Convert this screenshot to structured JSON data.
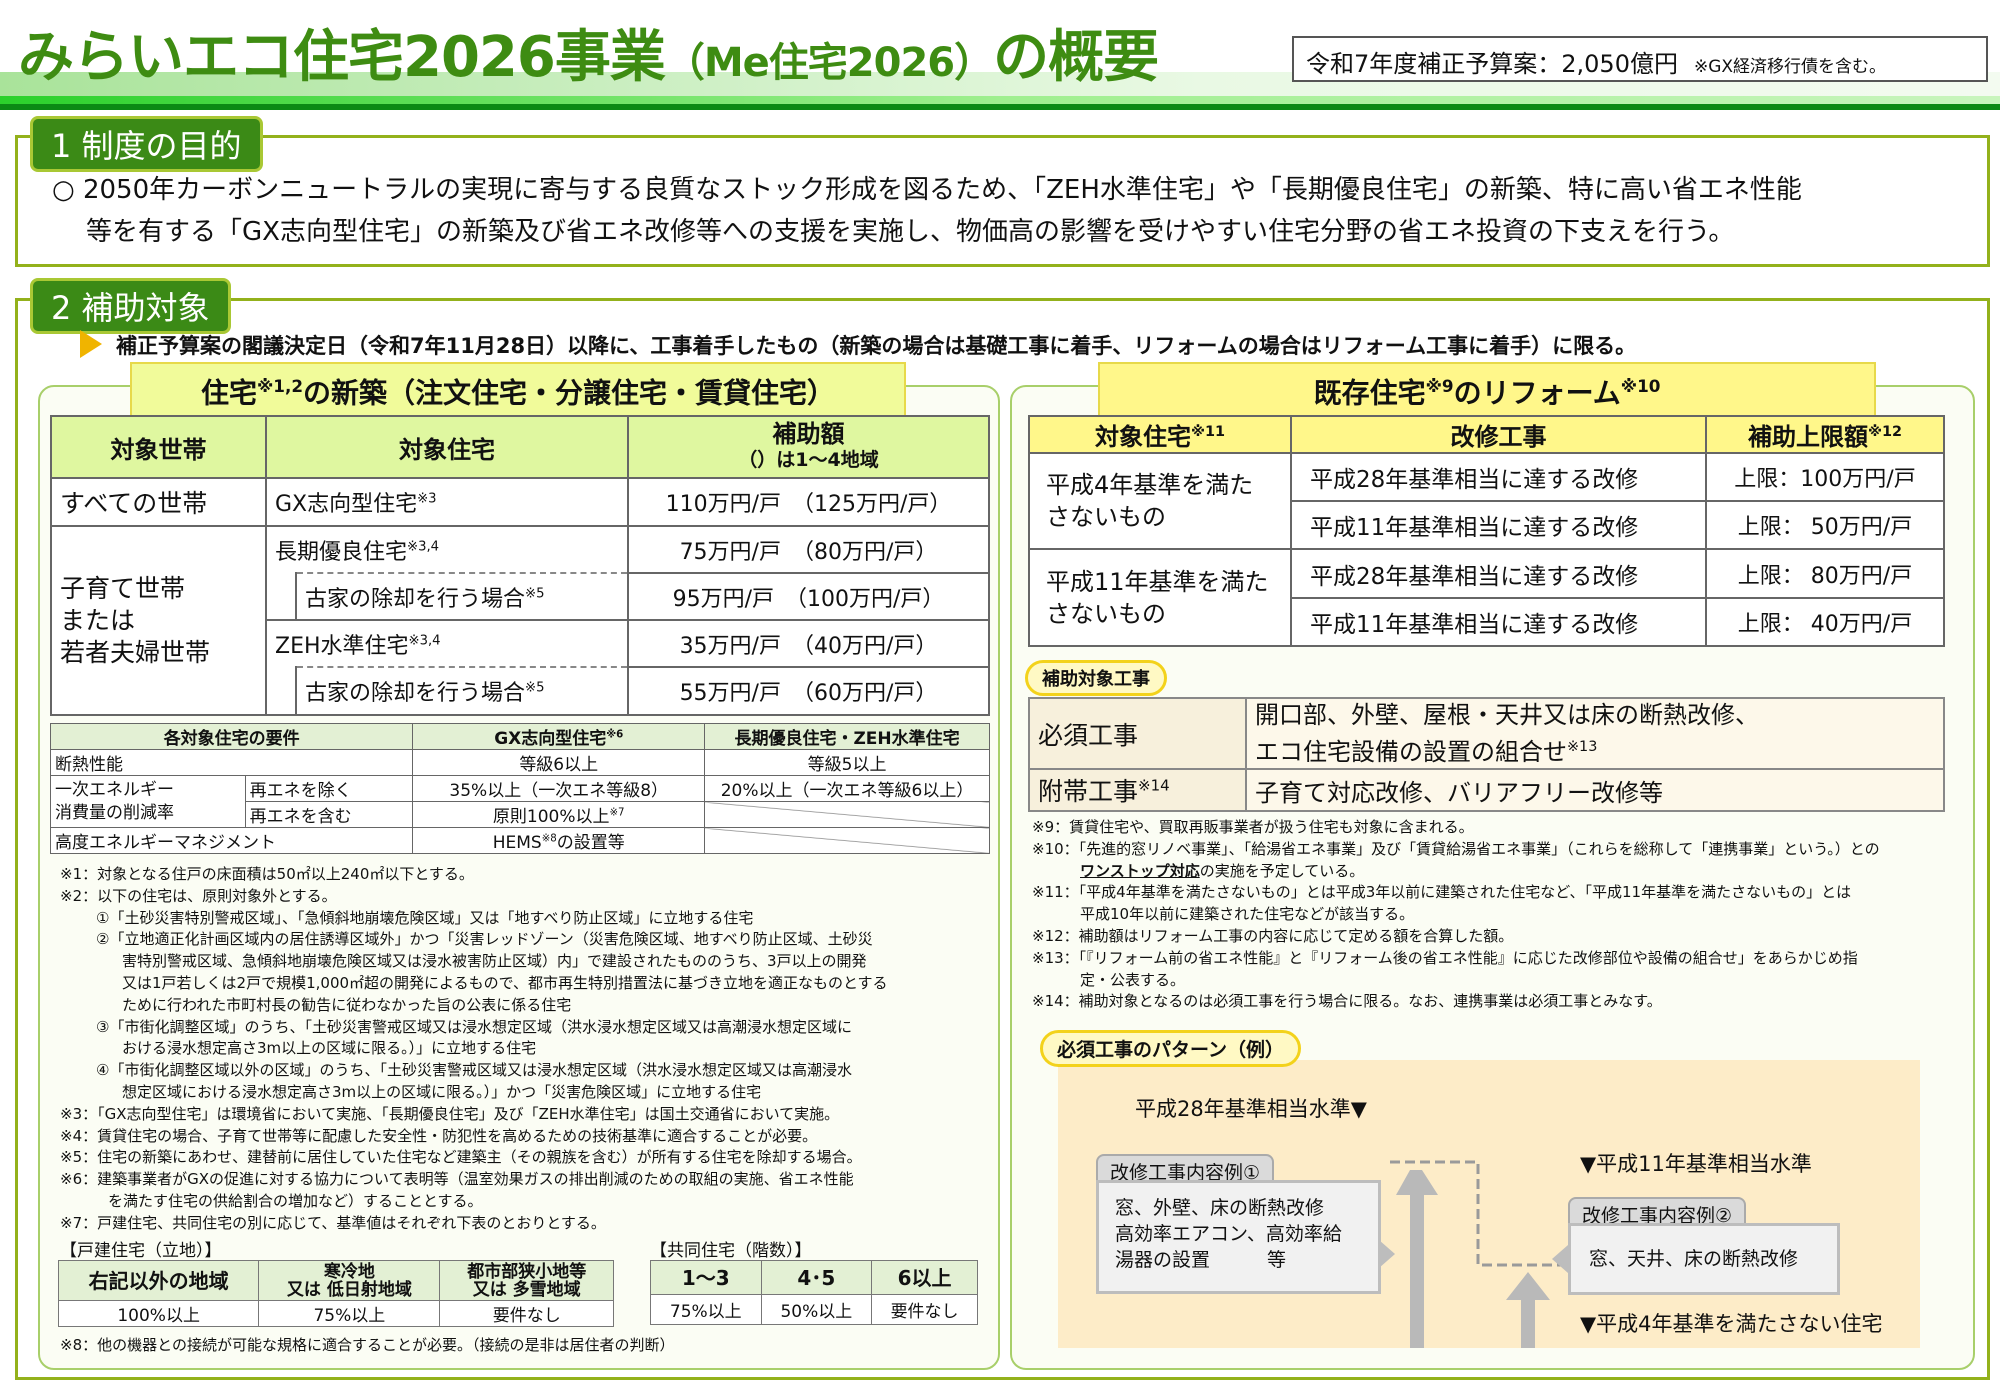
{
  "header": {
    "title_main": "みらいエコ住宅2026事業",
    "title_sub": "（Me住宅2026）",
    "title_end": "の概要",
    "budget": "令和7年度補正予算案：2,050億円",
    "budget_note": "※GX経済移行債を含む。"
  },
  "section1": {
    "tab": "1 制度の目的",
    "line1": "○ 2050年カーボンニュートラルの実現に寄与する良質なストック形成を図るため、「ZEH水準住宅」や「長期優良住宅」の新築、特に高い省エネ性能",
    "line2": "等を有する「GX志向型住宅」の新築及び省エネ改修等への支援を実施し、物価高の影響を受けやすい住宅分野の省エネ投資の下支えを行う。"
  },
  "section2": {
    "tab": "2 補助対象",
    "condition": "補正予算案の閣議決定日（令和7年11月28日）以降に、工事着手したもの（新築の場合は基礎工事に着手、リフォームの場合はリフォーム工事に着手）に限る。",
    "colors": {
      "accent_green": "#3b8a16",
      "header_yellow": "#fff78a",
      "table_header": "#dff7a0"
    }
  },
  "newbuild": {
    "heading_a": "住宅",
    "heading_sup": "※1,2",
    "heading_b": "の新築（注文住宅・分譲住宅・賃貸住宅）",
    "headers": [
      "対象世帯",
      "対象住宅",
      "補助額",
      "（）は1～4地域"
    ],
    "all_households": "すべての世帯",
    "family_households": [
      "子育て世帯",
      "または",
      "若者夫婦世帯"
    ],
    "rows": [
      {
        "house": "GX志向型住宅",
        "sup": "※3",
        "amount": "110万円/戸",
        "amount_region": "（125万円/戸）"
      },
      {
        "house": "長期優良住宅",
        "sup": "※3,4",
        "amount": "75万円/戸",
        "amount_region": "（80万円/戸）"
      },
      {
        "house": "古家の除却を行う場合",
        "sup": "※5",
        "amount": "95万円/戸",
        "amount_region": "（100万円/戸）"
      },
      {
        "house": "ZEH水準住宅",
        "sup": "※3,4",
        "amount": "35万円/戸",
        "amount_region": "（40万円/戸）"
      },
      {
        "house": "古家の除却を行う場合",
        "sup": "※5",
        "amount": "55万円/戸",
        "amount_region": "（60万円/戸）"
      }
    ]
  },
  "requirements": {
    "headers": [
      "各対象住宅の要件",
      "GX志向型住宅",
      "※6",
      "長期優良住宅・ZEH水準住宅"
    ],
    "insulation": {
      "label": "断熱性能",
      "gx": "等級6以上",
      "other": "等級5以上"
    },
    "energy_label_1": "一次エネルギー",
    "energy_label_2": "消費量の削減率",
    "excl": {
      "label": "再エネを除く",
      "gx": "35%以上（一次エネ等級8）",
      "other": "20%以上（一次エネ等級6以上）"
    },
    "incl": {
      "label": "再エネを含む",
      "gx": "原則100%以上",
      "sup": "※7"
    },
    "hems": {
      "label": "高度エネルギーマネジメント",
      "gx_a": "HEMS",
      "sup": "※8",
      "gx_b": "の設置等"
    }
  },
  "notes_left": [
    {
      "t": "※1：対象となる住戸の床面積は50㎡以上240㎡以下とする。",
      "c": ""
    },
    {
      "t": "※2：以下の住宅は、原則対象外とする。",
      "c": ""
    },
    {
      "t": "①「土砂災害特別警戒区域」、「急傾斜地崩壊危険区域」又は「地すべり防止区域」に立地する住宅",
      "c": "ind"
    },
    {
      "t": "②「立地適正化計画区域内の居住誘導区域外」かつ「災害レッドゾーン（災害危険区域、地すべり防止区域、土砂災",
      "c": "ind"
    },
    {
      "t": "害特別警戒区域、急傾斜地崩壊危険区域又は浸水被害防止区域）内」で建設されたもののうち、3戸以上の開発",
      "c": "ind2"
    },
    {
      "t": "又は1戸若しくは2戸で規模1,000㎡超の開発によるもので、都市再生特別措置法に基づき立地を適正なものとする",
      "c": "ind2"
    },
    {
      "t": "ために行われた市町村長の勧告に従わなかった旨の公表に係る住宅",
      "c": "ind2"
    },
    {
      "t": "③「市街化調整区域」のうち、「土砂災害警戒区域又は浸水想定区域（洪水浸水想定区域又は高潮浸水想定区域に",
      "c": "ind"
    },
    {
      "t": "おける浸水想定高さ3m以上の区域に限る。）」に立地する住宅",
      "c": "ind2"
    },
    {
      "t": "④「市街化調整区域以外の区域」のうち、「土砂災害警戒区域又は浸水想定区域（洪水浸水想定区域又は高潮浸水",
      "c": "ind"
    },
    {
      "t": "想定区域における浸水想定高さ3m以上の区域に限る。）」かつ「災害危険区域」に立地する住宅",
      "c": "ind2"
    },
    {
      "t": "※3：「GX志向型住宅」は環境省において実施、「長期優良住宅」及び「ZEH水準住宅」は国土交通省において実施。",
      "c": ""
    },
    {
      "t": "※4：賃貸住宅の場合、子育て世帯等に配慮した安全性・防犯性を高めるための技術基準に適合することが必要。",
      "c": ""
    },
    {
      "t": "※5：住宅の新築にあわせ、建替前に居住していた住宅など建築主（その親族を含む）が所有する住宅を除却する場合。",
      "c": ""
    },
    {
      "t": "※6：建築事業者がGXの促進に対する協力について表明等（温室効果ガスの排出削減のための取組の実施、省エネ性能",
      "c": ""
    },
    {
      "t": "を満たす住宅の供給割合の増加など）することとする。",
      "c": "ind3"
    },
    {
      "t": "※7：戸建住宅、共同住宅の別に応じて、基準値はそれぞれ下表のとおりとする。",
      "c": ""
    }
  ],
  "detached": {
    "label": "【戸建住宅（立地）】",
    "headers": [
      "右記以外の地域",
      "寒冷地",
      "又は 低日射地域",
      "都市部狭小地等",
      "又は 多雪地域"
    ],
    "values": [
      "100%以上",
      "75%以上",
      "要件なし"
    ]
  },
  "collective": {
    "label": "【共同住宅（階数）】",
    "headers": [
      "1～3",
      "4･5",
      "6以上"
    ],
    "values": [
      "75%以上",
      "50%以上",
      "要件なし"
    ]
  },
  "note8": "※8：他の機器との接続が可能な規格に適合することが必要。（接続の是非は居住者の判断）",
  "reform": {
    "heading_a": "既存住宅",
    "heading_sup": "※9",
    "heading_b": "のリフォーム",
    "heading_sup2": "※10",
    "headers": [
      "対象住宅",
      "※11",
      "改修工事",
      "補助上限額",
      "※12"
    ],
    "groups": [
      {
        "target": "平成4年基準を満たさないもの",
        "rows": [
          [
            "平成28年基準相当に達する改修",
            "上限：100万円/戸"
          ],
          [
            "平成11年基準相当に達する改修",
            "上限： 50万円/戸"
          ]
        ]
      },
      {
        "target": "平成11年基準を満たさないもの",
        "rows": [
          [
            "平成28年基準相当に達する改修",
            "上限： 80万円/戸"
          ],
          [
            "平成11年基準相当に達する改修",
            "上限： 40万円/戸"
          ]
        ]
      }
    ],
    "works_pill": "補助対象工事",
    "required_label": "必須工事",
    "required_text_1": "開口部、外壁、屋根・天井又は床の断熱改修、",
    "required_text_2": "エコ住宅設備の設置の組合せ",
    "required_sup": "※13",
    "additional_label": "附帯工事",
    "additional_sup": "※14",
    "additional_text": "子育て対応改修、バリアフリー改修等"
  },
  "notes_right": [
    {
      "t": "※9：賃貸住宅や、買取再販事業者が扱う住宅も対象に含まれる。",
      "c": ""
    },
    {
      "t": "※10：「先進的窓リノベ事業」、「給湯省エネ事業」及び「賃貸給湯省エネ事業」（これらを総称して「連携事業」という。）との",
      "c": ""
    },
    {
      "t": "ワンストップ対応",
      "c": "ind3 b",
      "tail": "の実施を予定している。"
    },
    {
      "t": "※11：「平成4年基準を満たさないもの」とは平成3年以前に建築された住宅など、「平成11年基準を満たさないもの」とは",
      "c": ""
    },
    {
      "t": "平成10年以前に建築された住宅などが該当する。",
      "c": "ind3"
    },
    {
      "t": "※12：補助額はリフォーム工事の内容に応じて定める額を合算した額。",
      "c": ""
    },
    {
      "t": "※13：「『リフォーム前の省エネ性能』と『リフォーム後の省エネ性能』に応じた改修部位や設備の組合せ」をあらかじめ指",
      "c": ""
    },
    {
      "t": "定・公表する。",
      "c": "ind3"
    },
    {
      "t": "※14：補助対象となるのは必須工事を行う場合に限る。なお、連携事業は必須工事とみなす。",
      "c": ""
    }
  ],
  "pattern": {
    "pill": "必須工事のパターン（例）",
    "level_h28": "平成28年基準相当水準▼",
    "level_h11": "▼平成11年基準相当水準",
    "level_h4": "▼平成4年基準を満たさない住宅",
    "example1_title": "改修工事内容例①",
    "example1_lines": [
      "窓、外壁、床の断熱改修",
      "高効率エアコン、高効率給",
      "湯器の設置　　　等"
    ],
    "example2_title": "改修工事内容例②",
    "example2_text": "窓、天井、床の断熱改修"
  }
}
